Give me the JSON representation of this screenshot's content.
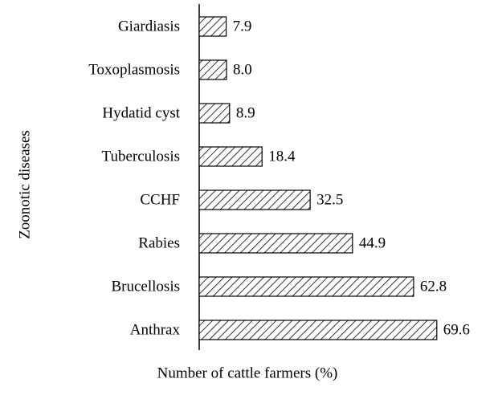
{
  "chart_data": {
    "type": "barh",
    "xlabel": "Number of cattle farmers (%)",
    "ylabel": "Zoonotic diseases",
    "categories": [
      "Giardiasis",
      "Toxoplasmosis",
      "Hydatid cyst",
      "Tuberculosis",
      "CCHF",
      "Rabies",
      "Brucellosis",
      "Anthrax"
    ],
    "values": [
      7.9,
      8.0,
      8.9,
      18.4,
      32.5,
      44.9,
      62.8,
      69.6
    ],
    "value_labels": [
      "7.9",
      "8.0",
      "8.9",
      "18.4",
      "32.5",
      "44.9",
      "62.8",
      "69.6"
    ],
    "color": "#000000",
    "xlim": [
      0,
      70
    ]
  }
}
